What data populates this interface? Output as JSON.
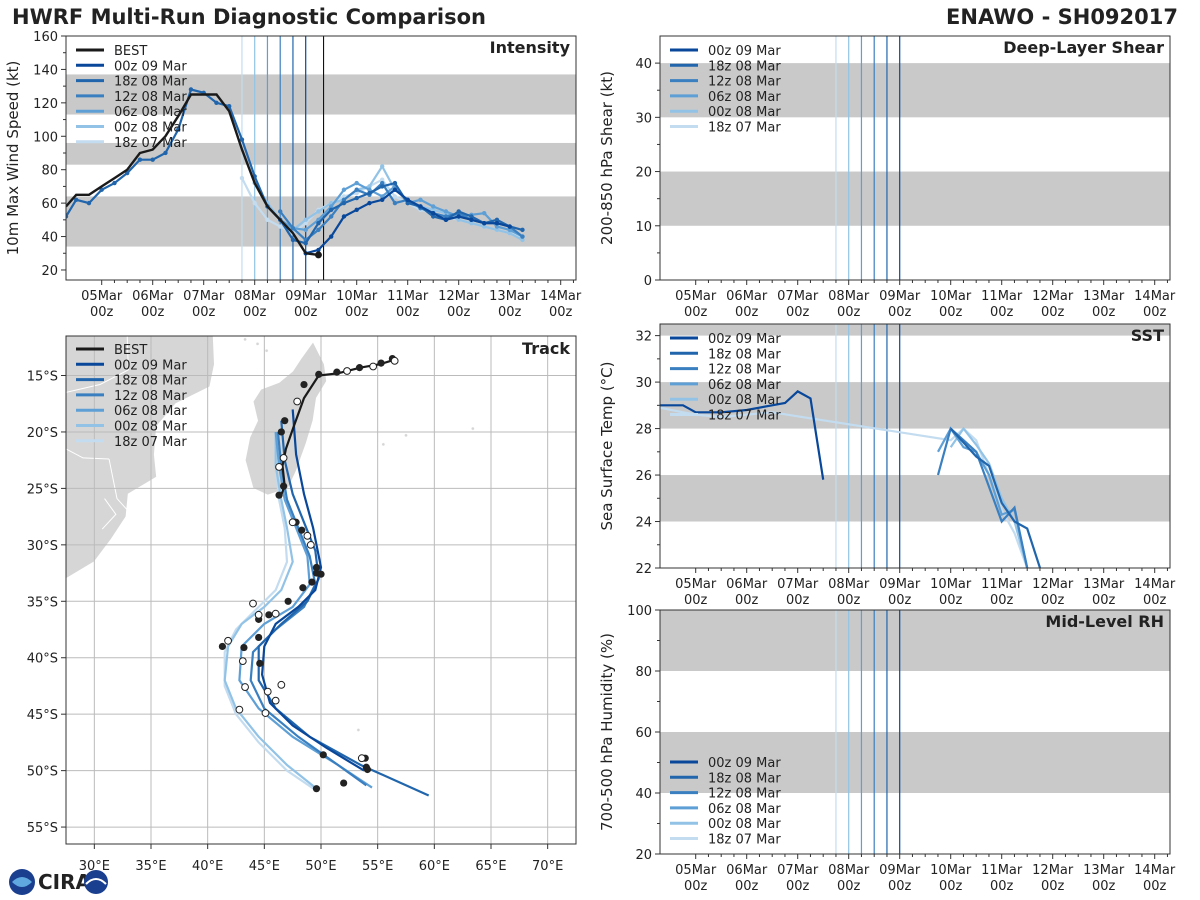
{
  "header": {
    "title": "HWRF Multi-Run Diagnostic Comparison",
    "storm_id": "ENAWO - SH092017"
  },
  "logo": {
    "text": "CIRA"
  },
  "colors": {
    "best": "#1a1a1a",
    "runs": [
      "#08479a",
      "#2166ac",
      "#3a7fc0",
      "#5e9fd6",
      "#92c3e6",
      "#c3dcf0"
    ],
    "band": "#c9c9c9",
    "land": "#d6d6d6",
    "coast": "#ffffff",
    "axis": "#333333"
  },
  "run_labels": [
    "00z 09 Mar",
    "18z 08 Mar",
    "12z 08 Mar",
    "06z 08 Mar",
    "00z 08 Mar",
    "18z 07 Mar"
  ],
  "best_label": "BEST",
  "time_axis": {
    "ticks": [
      [
        "05Mar",
        "00z"
      ],
      [
        "06Mar",
        "00z"
      ],
      [
        "07Mar",
        "00z"
      ],
      [
        "08Mar",
        "00z"
      ],
      [
        "09Mar",
        "00z"
      ],
      [
        "10Mar",
        "00z"
      ],
      [
        "11Mar",
        "00z"
      ],
      [
        "12Mar",
        "00z"
      ],
      [
        "13Mar",
        "00z"
      ],
      [
        "14Mar",
        "00z"
      ]
    ],
    "range_days": [
      4.3,
      14.3
    ],
    "init_days": [
      9.0,
      8.75,
      8.5,
      8.25,
      8.0,
      7.75
    ]
  },
  "chart_data": [
    {
      "id": "intensity",
      "type": "line",
      "title": "Intensity",
      "ylabel": "10m Max Wind Speed (kt)",
      "ylim": [
        14,
        160
      ],
      "yticks": [
        "20",
        "40",
        "60",
        "80",
        "100",
        "120",
        "140",
        "160"
      ],
      "bands": [
        [
          34,
          64
        ],
        [
          83,
          96
        ],
        [
          113,
          137
        ]
      ],
      "best": {
        "x": [
          4.3,
          4.5,
          4.75,
          5.0,
          5.25,
          5.5,
          5.75,
          6.0,
          6.25,
          6.5,
          6.75,
          7.0,
          7.25,
          7.5,
          7.75,
          8.0,
          8.25,
          8.5,
          8.75,
          9.0,
          9.25
        ],
        "y": [
          58,
          65,
          65,
          70,
          75,
          80,
          90,
          92,
          100,
          112,
          125,
          125,
          125,
          115,
          92,
          72,
          58,
          50,
          42,
          30,
          29
        ]
      },
      "series": [
        {
          "name": "00z 09 Mar",
          "x": [
            9.0,
            9.25,
            9.5,
            9.75,
            10.0,
            10.25,
            10.5,
            10.75,
            11.0,
            11.25,
            11.5,
            11.75,
            12.0,
            12.25,
            12.5,
            12.75,
            13.0
          ],
          "y": [
            30,
            32,
            40,
            52,
            56,
            60,
            62,
            68,
            62,
            58,
            54,
            50,
            52,
            50,
            48,
            48,
            46
          ]
        },
        {
          "name": "18z 08 Mar",
          "x": [
            4.3,
            4.5,
            4.75,
            5.0,
            5.25,
            5.5,
            5.75,
            6.0,
            6.25,
            6.5,
            6.75,
            7.0,
            7.25,
            7.5,
            7.75,
            8.0,
            8.25,
            8.5,
            8.75,
            9.0,
            9.25,
            9.5,
            9.75,
            10.0,
            10.25,
            10.5,
            10.75,
            11.0,
            11.25,
            11.5,
            11.75,
            12.0,
            12.25,
            12.5,
            12.75,
            13.0,
            13.25
          ],
          "y": [
            52,
            62,
            60,
            68,
            72,
            78,
            86,
            86,
            90,
            104,
            128,
            126,
            120,
            118,
            98,
            76,
            58,
            50,
            38,
            36,
            48,
            56,
            60,
            63,
            66,
            70,
            72,
            60,
            58,
            52,
            50,
            55,
            52,
            48,
            50,
            46,
            44
          ]
        },
        {
          "name": "12z 08 Mar",
          "x": [
            8.5,
            8.75,
            9.0,
            9.25,
            9.5,
            9.75,
            10.0,
            10.25,
            10.5,
            10.75,
            11.0,
            11.25,
            11.5,
            11.75,
            12.0,
            12.25,
            12.5,
            12.75,
            13.0,
            13.25
          ],
          "y": [
            55,
            45,
            38,
            44,
            52,
            62,
            68,
            65,
            72,
            60,
            62,
            57,
            54,
            52,
            54,
            50,
            48,
            48,
            46,
            40
          ]
        },
        {
          "name": "06z 08 Mar",
          "x": [
            8.25,
            8.5,
            8.75,
            9.0,
            9.25,
            9.5,
            9.75,
            10.0,
            10.25,
            10.5,
            10.75,
            11.0,
            11.25,
            11.5,
            11.75,
            12.0,
            12.25,
            12.5,
            12.75,
            13.0,
            13.25
          ],
          "y": [
            58,
            50,
            45,
            44,
            50,
            58,
            68,
            72,
            68,
            64,
            70,
            60,
            62,
            58,
            55,
            52,
            53,
            54,
            46,
            44,
            40
          ]
        },
        {
          "name": "00z 08 Mar",
          "x": [
            8.0,
            8.25,
            8.5,
            8.75,
            9.0,
            9.25,
            9.5,
            9.75,
            10.0,
            10.25,
            10.5,
            10.75,
            11.0,
            11.25,
            11.5,
            11.75,
            12.0,
            12.25,
            12.5,
            12.75,
            13.0,
            13.25
          ],
          "y": [
            72,
            60,
            50,
            44,
            50,
            55,
            60,
            62,
            68,
            70,
            82,
            68,
            62,
            58,
            56,
            54,
            50,
            48,
            46,
            44,
            42,
            38
          ]
        },
        {
          "name": "18z 07 Mar",
          "x": [
            7.75,
            8.0,
            8.25,
            8.5,
            8.75,
            9.0,
            9.25,
            9.5,
            9.75,
            10.0,
            10.25,
            10.5,
            10.75,
            11.0,
            11.25,
            11.5,
            11.75,
            12.0,
            12.25,
            12.5,
            12.75,
            13.0,
            13.25
          ],
          "y": [
            75,
            60,
            50,
            46,
            42,
            48,
            56,
            60,
            64,
            66,
            70,
            74,
            64,
            60,
            56,
            54,
            52,
            50,
            48,
            46,
            44,
            42,
            40
          ]
        }
      ]
    },
    {
      "id": "shear",
      "type": "line",
      "title": "Deep-Layer Shear",
      "ylabel": "200-850 hPa Shear (kt)",
      "ylim": [
        0,
        45
      ],
      "yticks": [
        "0",
        "10",
        "20",
        "30",
        "40"
      ],
      "bands": [
        [
          10,
          20
        ],
        [
          30,
          40
        ]
      ],
      "series": []
    },
    {
      "id": "sst",
      "type": "line",
      "title": "SST",
      "ylabel": "Sea Surface Temp (°C)",
      "ylim": [
        22,
        32.5
      ],
      "yticks": [
        "22",
        "24",
        "26",
        "28",
        "30",
        "32"
      ],
      "bands": [
        [
          24,
          26
        ],
        [
          28,
          30
        ],
        [
          32,
          32.5
        ]
      ],
      "series": [
        {
          "name": "00z 09 Mar",
          "x": [
            4.3,
            4.75,
            5.0,
            5.5,
            6.0,
            6.5,
            6.75,
            7.0,
            7.25,
            7.5
          ],
          "y": [
            29.0,
            29.0,
            28.7,
            28.7,
            28.8,
            29.0,
            29.1,
            29.6,
            29.3,
            25.8
          ]
        },
        {
          "name": "18z 08 Mar",
          "x": [
            10.0,
            10.25,
            10.5,
            10.75,
            11.0,
            11.25,
            11.5,
            11.75
          ],
          "y": [
            28.0,
            27.4,
            26.8,
            26.4,
            24.8,
            24.0,
            23.7,
            22.0
          ]
        },
        {
          "name": "12z 08 Mar",
          "x": [
            9.75,
            10.0,
            10.25,
            10.5,
            10.75,
            11.0,
            11.25,
            11.5
          ],
          "y": [
            26.0,
            28.0,
            27.5,
            27.0,
            25.5,
            24.0,
            24.6,
            22.0
          ]
        },
        {
          "name": "06z 08 Mar",
          "x": [
            9.75,
            10.0,
            10.25,
            10.5,
            10.75,
            11.0,
            11.25,
            11.5
          ],
          "y": [
            27.0,
            28.0,
            27.2,
            27.0,
            26.0,
            24.3,
            24.5,
            22.0
          ]
        },
        {
          "name": "00z 08 Mar",
          "x": [
            10.0,
            10.25,
            10.5,
            10.75,
            11.0,
            11.25,
            11.5
          ],
          "y": [
            27.2,
            28.0,
            27.3,
            26.5,
            25.0,
            24.0,
            22.0
          ]
        },
        {
          "name": "18z 07 Mar",
          "x": [
            4.3,
            4.75,
            5.0,
            5.5,
            6.0,
            6.5,
            10.0,
            10.25,
            10.5,
            10.75,
            11.0,
            11.25,
            11.5
          ],
          "y": [
            28.9,
            28.7,
            28.6,
            28.5,
            28.6,
            28.7,
            27.5,
            28.0,
            27.5,
            26.0,
            24.5,
            23.5,
            22.0
          ]
        }
      ]
    },
    {
      "id": "rh",
      "type": "line",
      "title": "Mid-Level RH",
      "ylabel": "700-500 hPa Humidity (%)",
      "ylim": [
        20,
        100
      ],
      "yticks": [
        "20",
        "40",
        "60",
        "80",
        "100"
      ],
      "bands": [
        [
          40,
          60
        ],
        [
          80,
          100
        ]
      ],
      "series": []
    },
    {
      "id": "track",
      "type": "scatter",
      "title": "Track",
      "xlim": [
        27.5,
        72.5
      ],
      "ylim": [
        -56.5,
        -11.5
      ],
      "xticks": [
        "30°E",
        "35°E",
        "40°E",
        "45°E",
        "50°E",
        "55°E",
        "60°E",
        "65°E",
        "70°E"
      ],
      "yticks": [
        "15°S",
        "20°S",
        "25°S",
        "30°S",
        "35°S",
        "40°S",
        "45°S",
        "50°S",
        "55°S"
      ],
      "best": {
        "lon": [
          56.5,
          55.2,
          53.5,
          51.5,
          49.8,
          48.5,
          47.6,
          46.9,
          46.6,
          46.8,
          46.4
        ],
        "lat": [
          -13.6,
          -14.0,
          -14.3,
          -14.8,
          -15.0,
          -17.0,
          -19.5,
          -21.5,
          -23.0,
          -24.8,
          -25.8
        ],
        "dots": [
          [
            56.3,
            -13.5
          ],
          [
            55.3,
            -13.9
          ],
          [
            53.4,
            -14.3
          ],
          [
            51.4,
            -14.7
          ],
          [
            49.8,
            -14.9
          ],
          [
            48.5,
            -15.8
          ],
          [
            46.8,
            -19.0
          ],
          [
            46.5,
            -20.0
          ],
          [
            46.7,
            -24.8
          ],
          [
            46.3,
            -25.6
          ]
        ],
        "open_dots": [
          [
            56.5,
            -13.7
          ],
          [
            54.6,
            -14.2
          ],
          [
            52.3,
            -14.6
          ],
          [
            47.9,
            -17.3
          ],
          [
            46.7,
            -22.3
          ],
          [
            46.3,
            -23.1
          ]
        ]
      },
      "series": [
        {
          "name": "00z 09 Mar",
          "lon": [
            47.5,
            47.8,
            48.5,
            49.3,
            50.0,
            49.5,
            48.0,
            46.0,
            45.0,
            44.8,
            45.5,
            47.5,
            50.5,
            53.8
          ],
          "lat": [
            -18.0,
            -22.0,
            -25.5,
            -28.5,
            -32.0,
            -34.0,
            -35.5,
            -37.0,
            -39.0,
            -41.5,
            -44.0,
            -46.0,
            -48.0,
            -50.0
          ]
        },
        {
          "name": "18z 08 Mar",
          "lon": [
            46.5,
            46.8,
            47.5,
            48.5,
            49.5,
            49.8,
            48.8,
            46.5,
            44.5,
            44.5,
            46.0,
            49.0,
            53.5,
            59.5
          ],
          "lat": [
            -19.0,
            -22.5,
            -25.5,
            -28.0,
            -30.5,
            -33.0,
            -35.0,
            -37.0,
            -39.0,
            -42.0,
            -44.5,
            -47.0,
            -49.5,
            -52.2
          ]
        },
        {
          "name": "12z 08 Mar",
          "lon": [
            46.2,
            46.5,
            47.0,
            48.0,
            49.0,
            49.5,
            48.5,
            46.0,
            44.0,
            43.8,
            45.0,
            48.0,
            51.5,
            54.0
          ],
          "lat": [
            -20.0,
            -23.0,
            -26.0,
            -28.5,
            -31.0,
            -33.5,
            -35.5,
            -37.5,
            -39.5,
            -42.0,
            -44.5,
            -47.0,
            -49.5,
            -51.3
          ]
        },
        {
          "name": "06z 08 Mar",
          "lon": [
            46.0,
            46.3,
            46.8,
            47.8,
            48.8,
            49.0,
            47.5,
            45.0,
            43.0,
            42.8,
            44.5,
            47.5,
            51.5,
            54.5
          ],
          "lat": [
            -20.0,
            -23.0,
            -26.0,
            -28.5,
            -31.0,
            -33.5,
            -35.5,
            -37.0,
            -39.0,
            -42.0,
            -44.5,
            -47.0,
            -49.5,
            -51.5
          ]
        },
        {
          "name": "00z 08 Mar",
          "lon": [
            46.0,
            46.0,
            46.5,
            47.0,
            47.5,
            46.5,
            45.0,
            43.0,
            41.8,
            41.5,
            42.5,
            44.5,
            47.0,
            49.5
          ],
          "lat": [
            -20.0,
            -23.0,
            -26.0,
            -28.5,
            -31.5,
            -34.0,
            -35.5,
            -37.0,
            -39.0,
            -42.0,
            -44.5,
            -47.0,
            -49.5,
            -51.5
          ]
        },
        {
          "name": "18z 07 Mar",
          "lon": [
            46.0,
            46.0,
            46.3,
            46.8,
            47.0,
            46.0,
            44.5,
            42.5,
            41.5,
            41.5,
            42.5,
            44.5,
            47.0,
            49.5
          ],
          "lat": [
            -20.0,
            -23.0,
            -26.0,
            -28.5,
            -31.5,
            -34.0,
            -35.5,
            -37.5,
            -39.5,
            -42.5,
            -45.0,
            -47.5,
            -50.0,
            -51.7
          ]
        }
      ],
      "forecast_dots": [
        [
          49.6,
          -32.0
        ],
        [
          49.6,
          -32.5
        ],
        [
          50.0,
          -32.6
        ],
        [
          49.2,
          -33.3
        ],
        [
          48.4,
          -33.8
        ],
        [
          47.8,
          -28.0
        ],
        [
          48.3,
          -28.7
        ],
        [
          47.1,
          -35.0
        ],
        [
          45.4,
          -36.2
        ],
        [
          44.5,
          -36.6
        ],
        [
          44.5,
          -38.2
        ],
        [
          43.2,
          -39.1
        ],
        [
          41.3,
          -39.0
        ],
        [
          43.1,
          -40.3
        ],
        [
          44.6,
          -40.5
        ],
        [
          53.9,
          -48.9
        ],
        [
          54.0,
          -49.7
        ],
        [
          52.0,
          -51.1
        ],
        [
          49.6,
          -51.6
        ],
        [
          50.2,
          -48.6
        ],
        [
          54.1,
          -49.9
        ]
      ],
      "forecast_open_dots": [
        [
          47.5,
          -28.0
        ],
        [
          48.8,
          -29.2
        ],
        [
          49.1,
          -30.0
        ],
        [
          44.0,
          -35.2
        ],
        [
          44.5,
          -36.2
        ],
        [
          46.0,
          -36.1
        ],
        [
          41.8,
          -38.5
        ],
        [
          43.1,
          -40.3
        ],
        [
          43.3,
          -42.6
        ],
        [
          45.3,
          -43.0
        ],
        [
          46.0,
          -43.8
        ],
        [
          46.5,
          -42.4
        ],
        [
          45.1,
          -44.9
        ],
        [
          42.8,
          -44.6
        ],
        [
          53.6,
          -48.9
        ]
      ]
    }
  ]
}
